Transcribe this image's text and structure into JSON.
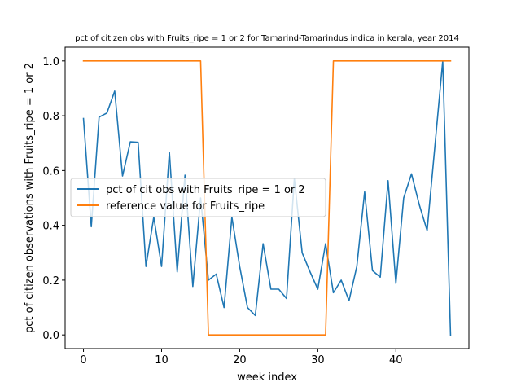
{
  "chart_data": {
    "type": "line",
    "title": "pct of citizen obs with Fruits_ripe = 1 or 2 for Tamarind-Tamarindus indica in kerala, year 2014",
    "xlabel": "week index",
    "ylabel": "pct of citizen observations with Fruits_ripe = 1 or 2",
    "xlim": [
      -2.35,
      49.35
    ],
    "ylim": [
      -0.05,
      1.05
    ],
    "xticks": [
      0,
      10,
      20,
      30,
      40
    ],
    "yticks": [
      0.0,
      0.2,
      0.4,
      0.6,
      0.8,
      1.0
    ],
    "ytick_labels": [
      "0.0",
      "0.2",
      "0.4",
      "0.6",
      "0.8",
      "1.0"
    ],
    "legend_position": "center-left",
    "grid": false,
    "series": [
      {
        "name": "pct of cit obs with Fruits_ripe = 1 or 2",
        "color": "#1f77b4",
        "x": [
          0,
          1,
          2,
          3,
          4,
          5,
          6,
          7,
          8,
          9,
          10,
          11,
          12,
          13,
          14,
          15,
          16,
          17,
          18,
          19,
          20,
          21,
          22,
          23,
          24,
          25,
          26,
          27,
          28,
          29,
          30,
          31,
          32,
          33,
          34,
          35,
          36,
          37,
          38,
          39,
          40,
          41,
          42,
          43,
          44,
          45,
          46,
          47
        ],
        "y": [
          0.79,
          0.395,
          0.795,
          0.81,
          0.89,
          0.58,
          0.705,
          0.703,
          0.25,
          0.43,
          0.25,
          0.667,
          0.23,
          0.583,
          0.177,
          0.5,
          0.2,
          0.222,
          0.1,
          0.43,
          0.25,
          0.1,
          0.071,
          0.333,
          0.167,
          0.167,
          0.133,
          0.571,
          0.3,
          0.231,
          0.167,
          0.333,
          0.154,
          0.2,
          0.125,
          0.25,
          0.522,
          0.235,
          0.211,
          0.563,
          0.188,
          0.5,
          0.588,
          0.475,
          0.381,
          0.69,
          1.0,
          0.0
        ]
      },
      {
        "name": "reference value for Fruits_ripe",
        "color": "#ff7f0e",
        "x": [
          0,
          1,
          2,
          3,
          4,
          5,
          6,
          7,
          8,
          9,
          10,
          11,
          12,
          13,
          14,
          15,
          16,
          17,
          18,
          19,
          20,
          21,
          22,
          23,
          24,
          25,
          26,
          27,
          28,
          29,
          30,
          31,
          32,
          33,
          34,
          35,
          36,
          37,
          38,
          39,
          40,
          41,
          42,
          43,
          44,
          45,
          46,
          47
        ],
        "y": [
          1,
          1,
          1,
          1,
          1,
          1,
          1,
          1,
          1,
          1,
          1,
          1,
          1,
          1,
          1,
          1,
          0,
          0,
          0,
          0,
          0,
          0,
          0,
          0,
          0,
          0,
          0,
          0,
          0,
          0,
          0,
          0,
          1,
          1,
          1,
          1,
          1,
          1,
          1,
          1,
          1,
          1,
          1,
          1,
          1,
          1,
          1,
          1
        ]
      }
    ]
  }
}
